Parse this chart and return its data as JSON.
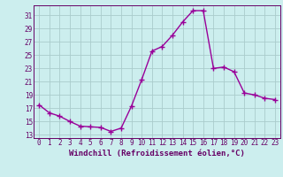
{
  "x": [
    0,
    1,
    2,
    3,
    4,
    5,
    6,
    7,
    8,
    9,
    10,
    11,
    12,
    13,
    14,
    15,
    16,
    17,
    18,
    19,
    20,
    21,
    22,
    23
  ],
  "y": [
    17.5,
    16.3,
    15.8,
    15.0,
    14.3,
    14.2,
    14.1,
    13.5,
    14.0,
    17.3,
    21.3,
    25.6,
    26.3,
    28.0,
    30.0,
    31.7,
    31.7,
    23.0,
    23.2,
    22.5,
    19.3,
    19.0,
    18.5,
    18.3
  ],
  "line_color": "#990099",
  "marker": "+",
  "markersize": 4,
  "linewidth": 1.0,
  "xlabel": "Windchill (Refroidissement éolien,°C)",
  "xlabel_fontsize": 6.5,
  "bg_color": "#cceeee",
  "grid_color": "#aacccc",
  "yticks": [
    13,
    15,
    17,
    19,
    21,
    23,
    25,
    27,
    29,
    31
  ],
  "xtick_labels": [
    "0",
    "1",
    "2",
    "3",
    "4",
    "5",
    "6",
    "7",
    "8",
    "9",
    "10",
    "11",
    "12",
    "13",
    "14",
    "15",
    "16",
    "17",
    "18",
    "19",
    "20",
    "21",
    "22",
    "23"
  ],
  "xlim": [
    -0.5,
    23.5
  ],
  "ylim": [
    12.5,
    32.5
  ],
  "tick_fontsize": 5.5,
  "text_color": "#660066"
}
